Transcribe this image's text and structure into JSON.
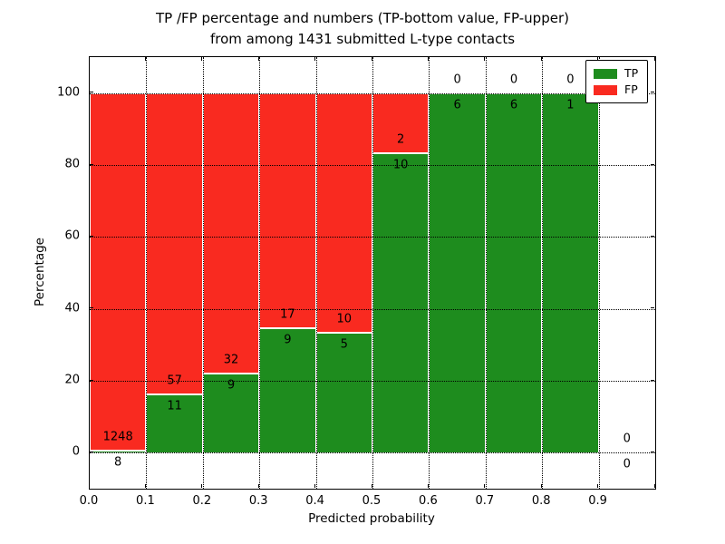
{
  "title": {
    "line1": "TP /FP percentage and numbers (TP-bottom value, FP-upper)",
    "line2": "from among 1431 submitted L-type contacts"
  },
  "axes": {
    "xlabel": "Predicted probability",
    "ylabel": "Percentage",
    "xtick_labels": [
      "0.0",
      "0.1",
      "0.2",
      "0.3",
      "0.4",
      "0.5",
      "0.6",
      "0.7",
      "0.8",
      "0.9"
    ],
    "xtick_values": [
      0.0,
      0.1,
      0.2,
      0.3,
      0.4,
      0.5,
      0.6,
      0.7,
      0.8,
      0.9
    ],
    "ytick_labels": [
      "0",
      "20",
      "40",
      "60",
      "80",
      "100"
    ],
    "ytick_values": [
      0,
      20,
      40,
      60,
      80,
      100
    ],
    "xlim": [
      0.0,
      1.0
    ],
    "ylim": [
      -10,
      110
    ],
    "grid": "dotted"
  },
  "legend": {
    "position": "upper-right",
    "items": [
      {
        "label": "TP",
        "color": "#1e8c1e"
      },
      {
        "label": "FP",
        "color": "#f92a20"
      }
    ]
  },
  "chart_data": {
    "type": "bar",
    "stacked": true,
    "note": "bars stacked to 100%; TP count labeled below boundary, FP count above",
    "bin_width": 0.1,
    "bins": [
      {
        "range": [
          0.0,
          0.1
        ],
        "tp": 8,
        "fp": 1248,
        "tp_pct": 0.6
      },
      {
        "range": [
          0.1,
          0.2
        ],
        "tp": 11,
        "fp": 57,
        "tp_pct": 16.2
      },
      {
        "range": [
          0.2,
          0.3
        ],
        "tp": 9,
        "fp": 32,
        "tp_pct": 22.0
      },
      {
        "range": [
          0.3,
          0.4
        ],
        "tp": 9,
        "fp": 17,
        "tp_pct": 34.6
      },
      {
        "range": [
          0.4,
          0.5
        ],
        "tp": 5,
        "fp": 10,
        "tp_pct": 33.3
      },
      {
        "range": [
          0.5,
          0.6
        ],
        "tp": 10,
        "fp": 2,
        "tp_pct": 83.3
      },
      {
        "range": [
          0.6,
          0.7
        ],
        "tp": 6,
        "fp": 0,
        "tp_pct": 100.0
      },
      {
        "range": [
          0.7,
          0.8
        ],
        "tp": 6,
        "fp": 0,
        "tp_pct": 100.0
      },
      {
        "range": [
          0.8,
          0.9
        ],
        "tp": 1,
        "fp": 0,
        "tp_pct": 100.0
      },
      {
        "range": [
          0.9,
          1.0
        ],
        "tp": 0,
        "fp": 0,
        "tp_pct": null
      }
    ]
  },
  "colors": {
    "tp": "#1e8c1e",
    "fp": "#f92a20",
    "bar_edge": "#ffffff",
    "grid": "#000000",
    "frame": "#000000",
    "background": "#ffffff"
  }
}
